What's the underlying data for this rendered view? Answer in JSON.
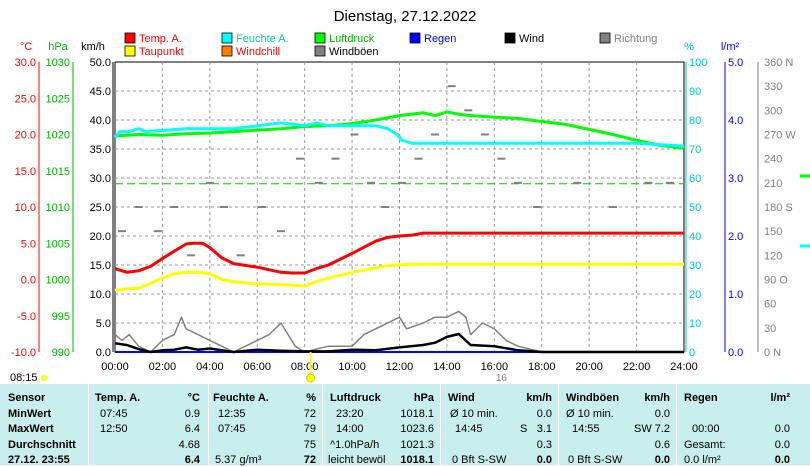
{
  "title": "Dienstag, 27.12.2022",
  "legend": [
    {
      "label": "Temp. A.",
      "color": "#ff0000",
      "text_color": "#ff0000"
    },
    {
      "label": "Feuchte A.",
      "color": "#00ffff",
      "text_color": "#00c8c8"
    },
    {
      "label": "Luftdruck",
      "color": "#00ff00",
      "text_color": "#00b400"
    },
    {
      "label": "Regen",
      "color": "#0000ff",
      "text_color": "#0000ff"
    },
    {
      "label": "Wind",
      "color": "#000000",
      "text_color": "#000000"
    },
    {
      "label": "Richtung",
      "color": "#808080",
      "text_color": "#808080"
    },
    {
      "label": "Taupunkt",
      "color": "#ffff00",
      "text_color": "#ff0000"
    },
    {
      "label": "Windchill",
      "color": "#ff8000",
      "text_color": "#ff0000"
    },
    {
      "label": "Windböen",
      "color": "#808080",
      "text_color": "#000000"
    }
  ],
  "colors": {
    "temp": "#ff0000",
    "dew": "#ffff00",
    "hum": "#00ffff",
    "press": "#00ff00",
    "wind": "#000000",
    "gust": "#808080",
    "dir": "#808080",
    "rain": "#0000ff",
    "table_bg": "#c8eeee"
  },
  "axes": {
    "temp_unit": "°C",
    "press_unit": "hPa",
    "wind_unit": "km/h",
    "hum_unit": "%",
    "rain_unit": "l/m²",
    "temp_ticks": [
      "30.0",
      "25.0",
      "20.0",
      "15.0",
      "10.0",
      "5.0",
      "0.0",
      "-5.0",
      "-10.0"
    ],
    "press_ticks": [
      "1030",
      "1025",
      "1020",
      "1015",
      "1010",
      "1005",
      "1000",
      "995",
      "990"
    ],
    "wind_ticks": [
      "50.0",
      "45.0",
      "40.0",
      "35.0",
      "30.0",
      "25.0",
      "20.0",
      "15.0",
      "10.0",
      "5.0",
      "0.0"
    ],
    "hum_ticks": [
      "100",
      "90",
      "80",
      "70",
      "60",
      "50",
      "40",
      "30",
      "20",
      "10",
      "0"
    ],
    "rain_ticks": [
      "5.0",
      "4.0",
      "3.0",
      "2.0",
      "1.0",
      "0.0"
    ],
    "dir_ticks": [
      "360 N",
      "330",
      "300",
      "270 W",
      "240",
      "210",
      "180 S",
      "150",
      "120",
      "90 O",
      "60",
      "30",
      "0 N"
    ],
    "x_ticks": [
      "00:00",
      "02:00",
      "04:00",
      "06:00",
      "08:00",
      "10:00",
      "12:00",
      "14:00",
      "16:00",
      "18:00",
      "20:00",
      "22:00",
      "24:00"
    ],
    "sunrise": "08:15",
    "sunset_label": "16"
  },
  "chart_data": {
    "type": "line",
    "x_unit": "hours",
    "x_range": [
      0,
      24
    ],
    "series": [
      {
        "name": "Temp. A.",
        "unit": "°C",
        "axis": "temp",
        "ylim": [
          -10,
          30
        ],
        "x": [
          0,
          0.5,
          1,
          1.5,
          2,
          2.5,
          3,
          3.3,
          3.7,
          4,
          4.5,
          5,
          6,
          7,
          7.5,
          8,
          8.5,
          9,
          10,
          11,
          11.5,
          12,
          12.5,
          13,
          14,
          15,
          16,
          17,
          18,
          20,
          22,
          24
        ],
        "y": [
          1.5,
          1.0,
          1.2,
          1.8,
          2.9,
          3.9,
          4.9,
          5.0,
          5.0,
          4.4,
          3.0,
          2.2,
          1.7,
          1.0,
          0.9,
          0.9,
          1.5,
          2.0,
          3.6,
          5.3,
          5.8,
          6.0,
          6.1,
          6.4,
          6.4,
          6.4,
          6.4,
          6.4,
          6.4,
          6.4,
          6.4,
          6.4
        ]
      },
      {
        "name": "Taupunkt",
        "unit": "°C",
        "axis": "temp",
        "ylim": [
          -10,
          30
        ],
        "x": [
          0,
          0.5,
          1,
          1.5,
          2,
          2.5,
          3,
          3.5,
          4,
          4.5,
          5,
          6,
          7,
          7.5,
          8,
          8.5,
          9,
          10,
          11,
          11.5,
          12,
          12.5,
          13,
          14,
          16,
          18,
          20,
          22,
          24
        ],
        "y": [
          -1.5,
          -1.3,
          -1.2,
          -0.5,
          0.2,
          0.8,
          1.0,
          1.0,
          0.8,
          0.0,
          -0.3,
          -0.6,
          -0.7,
          -0.8,
          -0.9,
          -0.3,
          0.2,
          1.0,
          1.6,
          1.9,
          2.0,
          2.1,
          2.1,
          2.1,
          2.1,
          2.1,
          2.1,
          2.1,
          2.1
        ]
      },
      {
        "name": "Feuchte A.",
        "unit": "%",
        "axis": "hum",
        "ylim": [
          0,
          100
        ],
        "x": [
          0,
          0.2,
          0.6,
          1,
          1.3,
          3,
          4,
          5,
          6,
          7,
          8,
          8.5,
          9,
          10,
          11,
          11.5,
          11.9,
          12.1,
          12.5,
          14,
          16,
          18,
          20,
          22,
          24
        ],
        "y": [
          74,
          76,
          76,
          77,
          76,
          77,
          77,
          77,
          78,
          79,
          78,
          79,
          78,
          78,
          78,
          77,
          75,
          73,
          72,
          72,
          72,
          72,
          72,
          72,
          71
        ]
      },
      {
        "name": "Luftdruck",
        "unit": "hPa",
        "axis": "press",
        "ylim": [
          990,
          1030
        ],
        "x": [
          0,
          1,
          2,
          3,
          4,
          5,
          6,
          7,
          8,
          9,
          10,
          11,
          12,
          13,
          13.5,
          14,
          14.5,
          15,
          16,
          17,
          18,
          19,
          20,
          21,
          22,
          23,
          24
        ],
        "y": [
          1019.8,
          1020,
          1019.9,
          1020.1,
          1020.2,
          1020.4,
          1020.6,
          1020.8,
          1021.1,
          1021.2,
          1021.5,
          1022,
          1022.6,
          1023,
          1022.6,
          1023.1,
          1022.8,
          1022.6,
          1022.4,
          1022.2,
          1021.8,
          1021.4,
          1020.7,
          1020,
          1019.2,
          1018.5,
          1018.1
        ]
      },
      {
        "name": "Wind",
        "unit": "km/h",
        "axis": "wind",
        "ylim": [
          0,
          50
        ],
        "x": [
          0,
          0.5,
          1,
          1.5,
          2,
          2.5,
          3,
          3.5,
          4,
          5,
          6,
          7,
          8,
          9,
          10,
          11,
          12,
          13,
          13.5,
          14,
          14.5,
          15,
          16,
          17,
          18,
          24
        ],
        "y": [
          1.5,
          1.2,
          0.5,
          0,
          0.3,
          0.4,
          0.8,
          0.4,
          0.6,
          0,
          0.4,
          0.2,
          0.1,
          0.1,
          0.4,
          0.3,
          0.8,
          1.2,
          1.6,
          2.6,
          3.1,
          1.2,
          1.0,
          0.3,
          0,
          0
        ]
      },
      {
        "name": "Windböen",
        "unit": "km/h",
        "axis": "wind",
        "ylim": [
          0,
          50
        ],
        "x": [
          0,
          0.3,
          0.6,
          1,
          1.5,
          2,
          2.5,
          2.8,
          3,
          3.5,
          4,
          4.5,
          5,
          6,
          6.5,
          7,
          7.3,
          7.6,
          8,
          9,
          10,
          10.5,
          11,
          11.5,
          12,
          12.3,
          13,
          13.5,
          14,
          14.5,
          14.8,
          15,
          15.5,
          16,
          16.5,
          17,
          18,
          24
        ],
        "y": [
          3,
          2,
          3,
          1,
          0,
          2,
          3,
          6,
          4,
          3,
          2,
          1,
          0,
          2,
          3,
          5,
          3,
          1,
          0,
          1,
          1,
          3,
          4,
          5,
          6,
          4,
          5,
          6,
          6,
          7,
          6,
          3,
          5,
          4,
          2,
          1,
          0,
          0
        ]
      },
      {
        "name": "Regen",
        "unit": "l/m²",
        "axis": "rain",
        "ylim": [
          0,
          5
        ],
        "x": [
          0,
          24
        ],
        "y": [
          0,
          0
        ]
      }
    ],
    "direction_marks": [
      {
        "x": 0.3,
        "deg": 150
      },
      {
        "x": 1.0,
        "deg": 180
      },
      {
        "x": 1.8,
        "deg": 150
      },
      {
        "x": 2.5,
        "deg": 180
      },
      {
        "x": 3.2,
        "deg": 120
      },
      {
        "x": 4.0,
        "deg": 210
      },
      {
        "x": 4.6,
        "deg": 180
      },
      {
        "x": 5.3,
        "deg": 120
      },
      {
        "x": 6.2,
        "deg": 180
      },
      {
        "x": 7.0,
        "deg": 150
      },
      {
        "x": 7.8,
        "deg": 240
      },
      {
        "x": 8.6,
        "deg": 210
      },
      {
        "x": 9.3,
        "deg": 240
      },
      {
        "x": 10.1,
        "deg": 270
      },
      {
        "x": 10.8,
        "deg": 210
      },
      {
        "x": 11.4,
        "deg": 180
      },
      {
        "x": 12.1,
        "deg": 210
      },
      {
        "x": 12.8,
        "deg": 240
      },
      {
        "x": 13.5,
        "deg": 270
      },
      {
        "x": 14.2,
        "deg": 330
      },
      {
        "x": 14.9,
        "deg": 300
      },
      {
        "x": 15.6,
        "deg": 270
      },
      {
        "x": 16.3,
        "deg": 240
      },
      {
        "x": 17.0,
        "deg": 210
      },
      {
        "x": 17.8,
        "deg": 180
      },
      {
        "x": 19.5,
        "deg": 210
      },
      {
        "x": 21.0,
        "deg": 180
      },
      {
        "x": 22.5,
        "deg": 210
      },
      {
        "x": 23.4,
        "deg": 210
      }
    ],
    "reference_line": {
      "value": 29.0,
      "axis": "wind",
      "color": "#00c800"
    }
  },
  "table": {
    "rows": [
      "Sensor",
      "MinWert",
      "MaxWert",
      "Durchschnitt",
      "27.12. 23:55"
    ],
    "temp": {
      "header": "Temp. A.",
      "unit": "°C",
      "min_time": "07:45",
      "min": "0.9",
      "max_time": "12:50",
      "max": "6.4",
      "avg": "4.68",
      "cur": "6.4"
    },
    "hum": {
      "header": "Feuchte A.",
      "unit": "%",
      "min_time": "12:35",
      "min": "72",
      "max_time": "07:45",
      "max": "79",
      "avg": "75",
      "extra": "5.37 g/m³",
      "cur": "72"
    },
    "press": {
      "header": "Luftdruck",
      "unit": "hPa",
      "min_time": "23:20",
      "min": "1018.1",
      "max_time": "14:00",
      "max": "1023.6",
      "trend": "^1.0hPa/h",
      "avg": "1021.3",
      "cond": "leicht bewöl",
      "cur": "1018.1"
    },
    "wind": {
      "header": "Wind",
      "unit": "km/h",
      "min_label": "Ø 10 min.",
      "min": "0.0",
      "max_time": "14:45",
      "max_dir": "S",
      "max": "3.1",
      "avg": "0.3",
      "cur_bft": "0 Bft S-SW",
      "cur": "0.0"
    },
    "gust": {
      "header": "Windböen",
      "unit": "km/h",
      "min_label": "Ø 10 min.",
      "min": "0.0",
      "max_time": "14:55",
      "max_dir": "SW",
      "max": "7.2",
      "avg": "0.6",
      "cur_bft": "0 Bft S-SW",
      "cur": "0.0"
    },
    "rain": {
      "header": "Regen",
      "unit": "l/m²",
      "max_time": "00:00",
      "max": "0.0",
      "total_label": "Gesamt:",
      "total": "0.0",
      "cur_rate": "0.0 l/m²",
      "cur": "0.0"
    }
  }
}
